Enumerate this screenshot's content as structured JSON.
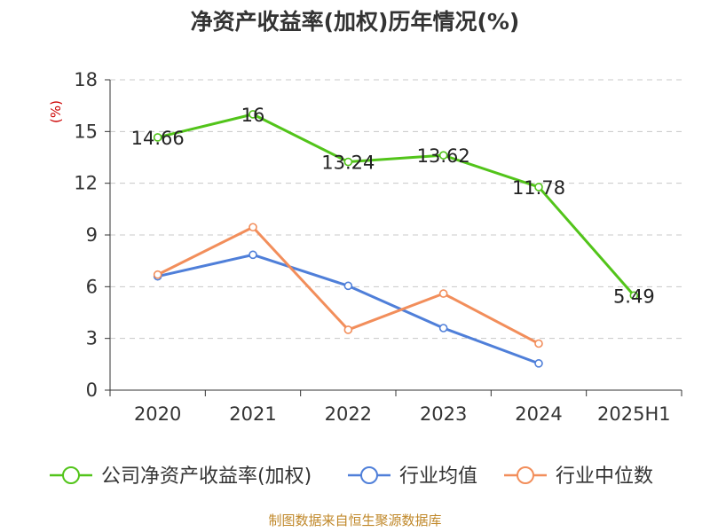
{
  "chart_data": {
    "type": "line",
    "title": "净资产收益率(加权)历年情况(%)",
    "ylabel": "(%)",
    "xlabel": "",
    "categories": [
      "2020",
      "2021",
      "2022",
      "2023",
      "2024",
      "2025H1"
    ],
    "ylim": [
      0,
      18
    ],
    "yticks": [
      0,
      3,
      6,
      9,
      12,
      15,
      18
    ],
    "grid": true,
    "legend_position": "bottom",
    "series": [
      {
        "name": "公司净资产收益率(加权)",
        "color": "#52c41a",
        "values": [
          14.66,
          16,
          13.24,
          13.62,
          11.78,
          5.49
        ],
        "data_labels": [
          "14.66",
          "16",
          "13.24",
          "13.62",
          "11.78",
          "5.49"
        ]
      },
      {
        "name": "行业均值",
        "color": "#4f7fd9",
        "values": [
          6.6,
          7.85,
          6.05,
          3.6,
          1.55,
          null
        ]
      },
      {
        "name": "行业中位数",
        "color": "#f28e5b",
        "values": [
          6.7,
          9.45,
          3.5,
          5.6,
          2.7,
          null
        ]
      }
    ]
  },
  "colors": {
    "axis": "#333333",
    "grid": "#c8c8c8",
    "unit_label": "#cc0000",
    "source": "#c0882a"
  },
  "source_note": "制图数据来自恒生聚源数据库"
}
